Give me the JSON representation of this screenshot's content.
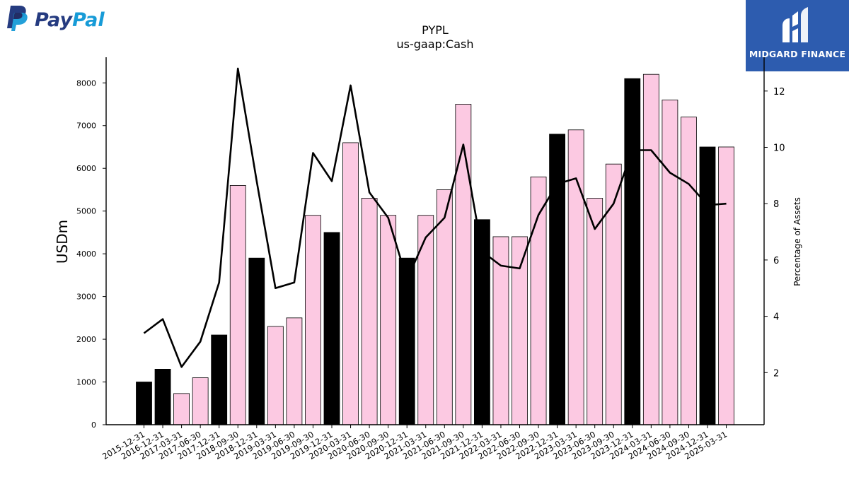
{
  "logos": {
    "paypal": {
      "text_dark": "Pay",
      "text_light": "Pal",
      "color_dark": "#253b80",
      "color_light": "#179bd7"
    },
    "midgard": {
      "text": "MIDGARD FINANCE",
      "background": "#2d5caf"
    }
  },
  "chart_data": {
    "type": "bar",
    "title": "PYPL",
    "subtitle": "us-gaap:Cash",
    "ylabel": "USDm",
    "ylabel_right": "Percentage of Assets",
    "ylim": [
      0,
      8600
    ],
    "ylim_right": [
      0.15,
      13.2
    ],
    "yticks": [
      0,
      1000,
      2000,
      3000,
      4000,
      5000,
      6000,
      7000,
      8000
    ],
    "yticks_right": [
      2,
      4,
      6,
      8,
      10,
      12
    ],
    "grid": false,
    "categories": [
      "2015-12-31",
      "2016-12-31",
      "2017-03-31",
      "2017-06-30",
      "2017-12-31",
      "2018-09-30",
      "2018-12-31",
      "2019-03-31",
      "2019-06-30",
      "2019-09-30",
      "2019-12-31",
      "2020-03-31",
      "2020-06-30",
      "2020-09-30",
      "2020-12-31",
      "2021-03-31",
      "2021-06-30",
      "2021-09-30",
      "2021-12-31",
      "2022-03-31",
      "2022-06-30",
      "2022-09-30",
      "2022-12-31",
      "2023-03-31",
      "2023-06-30",
      "2023-09-30",
      "2023-12-31",
      "2024-03-31",
      "2024-06-30",
      "2024-09-30",
      "2024-12-31",
      "2025-03-31"
    ],
    "series": [
      {
        "kind": "bar",
        "values": [
          1000,
          1300,
          730,
          1100,
          2100,
          5600,
          3900,
          2300,
          2500,
          4900,
          4500,
          6600,
          5300,
          4900,
          3900,
          4900,
          5500,
          7500,
          4800,
          4400,
          4400,
          5800,
          6800,
          6900,
          5300,
          6100,
          8100,
          8200,
          7600,
          7200,
          6500,
          6500
        ],
        "annual": [
          true,
          true,
          false,
          false,
          true,
          false,
          true,
          false,
          false,
          false,
          true,
          false,
          false,
          false,
          true,
          false,
          false,
          false,
          true,
          false,
          false,
          false,
          true,
          false,
          false,
          false,
          true,
          false,
          false,
          false,
          true,
          false
        ],
        "annual_color": "#000000",
        "quarter_color": "#fcc9e2"
      },
      {
        "kind": "line",
        "axis": "right",
        "color": "#000000",
        "values": [
          3.4,
          3.9,
          2.2,
          3.1,
          5.2,
          12.8,
          8.8,
          5.0,
          5.2,
          9.8,
          8.8,
          12.2,
          8.4,
          7.5,
          5.3,
          6.8,
          7.5,
          10.1,
          6.3,
          5.8,
          5.7,
          7.6,
          8.7,
          8.9,
          7.1,
          8.0,
          9.9,
          9.9,
          9.1,
          8.7,
          7.95,
          8.0
        ]
      }
    ]
  }
}
